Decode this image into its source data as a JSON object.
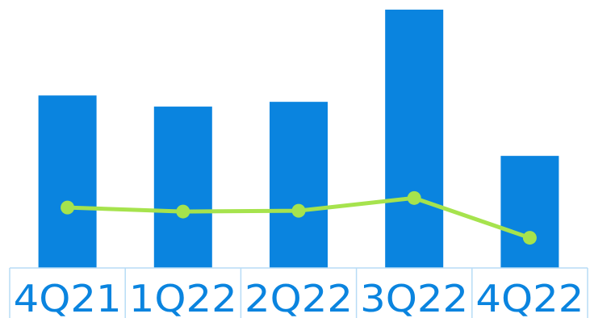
{
  "chart_data": {
    "type": "bar",
    "categories": [
      "4Q21",
      "1Q22",
      "2Q22",
      "3Q22",
      "4Q22"
    ],
    "series": [
      {
        "type": "bar",
        "values": [
          217,
          203,
          209,
          325,
          141
        ]
      },
      {
        "type": "line",
        "values": [
          76,
          71,
          72,
          88,
          38
        ]
      }
    ],
    "ylim": [
      0,
      330
    ],
    "grid": false,
    "legend": "none",
    "colors": {
      "bar": "#0a84df",
      "line": "#a6e34d",
      "axis": "#b7dcf6",
      "tick_label": "#0a84df"
    }
  }
}
